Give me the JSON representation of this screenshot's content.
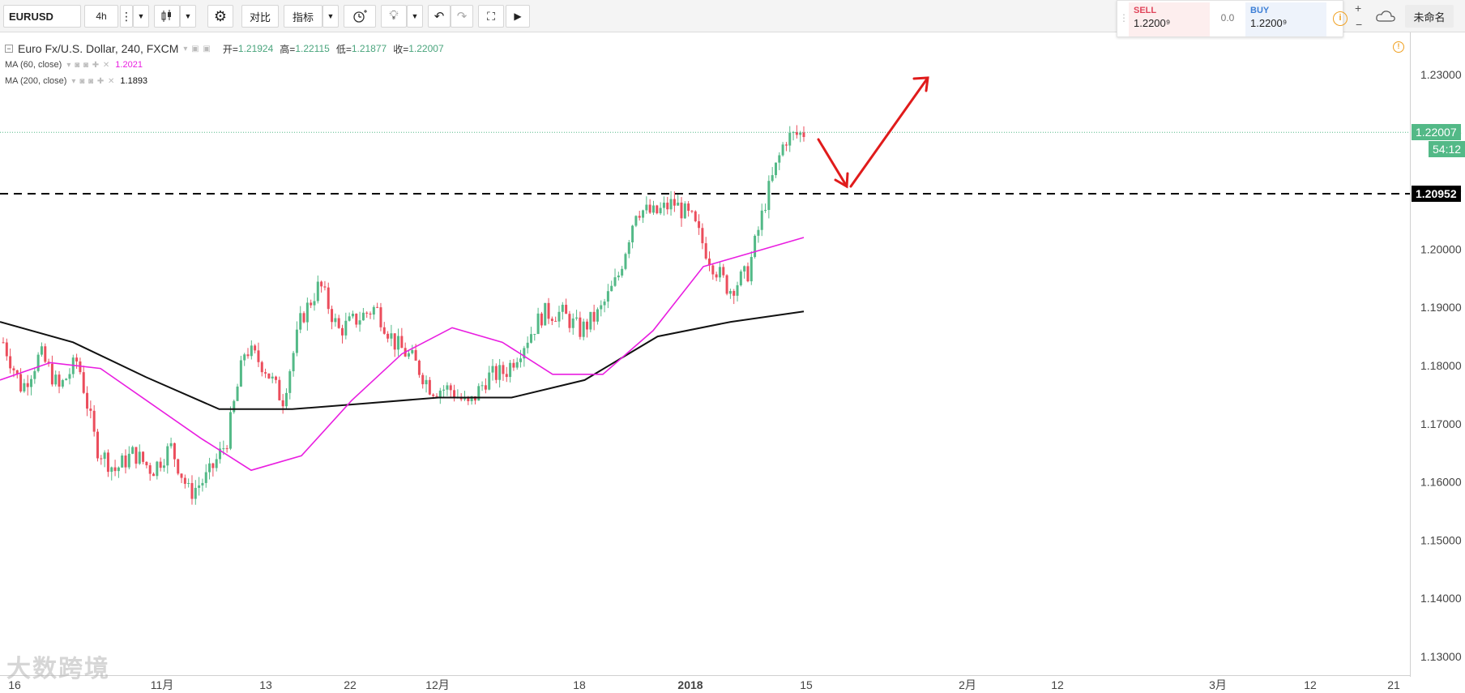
{
  "toolbar": {
    "symbol": "EURUSD",
    "interval": "4h",
    "compare_label": "对比",
    "indicators_label": "指标",
    "layout_name": "未命名"
  },
  "trade_panel": {
    "sell_label": "SELL",
    "sell_price": "1.2200⁹",
    "spread": "0.0",
    "buy_label": "BUY",
    "buy_price": "1.2200⁹"
  },
  "legend": {
    "title": "Euro Fx/U.S. Dollar, 240, FXCM",
    "open_label": "开=",
    "open": "1.21924",
    "high_label": "高=",
    "high": "1.22115",
    "low_label": "低=",
    "low": "1.21877",
    "close_label": "收=",
    "close": "1.22007",
    "ma60_label": "MA (60, close)",
    "ma60_value": "1.2021",
    "ma200_label": "MA (200, close)",
    "ma200_value": "1.1893"
  },
  "badges": {
    "last_price": "1.22007",
    "countdown": "54:12",
    "level": "1.20952"
  },
  "watermark": "大数跨境",
  "colors": {
    "up": "#53b987",
    "down": "#eb4d5c",
    "ma60": "#e91ee0",
    "ma200": "#111111",
    "annotation": "#e01b1b"
  },
  "chart_data": {
    "type": "candlestick",
    "symbol": "EURUSD",
    "ylim": [
      1.125,
      1.235
    ],
    "y_ticks": [
      "1.23000",
      "1.22000",
      "1.21000",
      "1.20000",
      "1.19000",
      "1.18000",
      "1.17000",
      "1.16000",
      "1.15000",
      "1.14000",
      "1.13000"
    ],
    "x_ticks": [
      "16",
      "11月",
      "13",
      "22",
      "12月",
      "18",
      "2018",
      "15",
      "2月",
      "12",
      "3月",
      "12",
      "21"
    ],
    "close_path": [
      1.184,
      1.176,
      1.182,
      1.176,
      1.181,
      1.166,
      1.162,
      1.165,
      1.162,
      1.166,
      1.158,
      1.161,
      1.167,
      1.183,
      1.18,
      1.174,
      1.188,
      1.194,
      1.186,
      1.188,
      1.19,
      1.184,
      1.181,
      1.176,
      1.176,
      1.173,
      1.178,
      1.179,
      1.184,
      1.189,
      1.189,
      1.186,
      1.189,
      1.195,
      1.207,
      1.206,
      1.208,
      1.205,
      1.198,
      1.193,
      1.196,
      1.209,
      1.219,
      1.22
    ],
    "ma60_path": [
      1.1775,
      1.1805,
      1.1795,
      1.1735,
      1.1675,
      1.162,
      1.1645,
      1.174,
      1.182,
      1.1865,
      1.184,
      1.1785,
      1.1785,
      1.186,
      1.197,
      1.1995,
      1.202
    ],
    "ma200_path": [
      1.1875,
      1.184,
      1.178,
      1.1725,
      1.1725,
      1.1735,
      1.1745,
      1.1745,
      1.1775,
      1.185,
      1.1875,
      1.1893
    ],
    "horizontal_level": 1.20952,
    "last_price_line": 1.22007
  }
}
